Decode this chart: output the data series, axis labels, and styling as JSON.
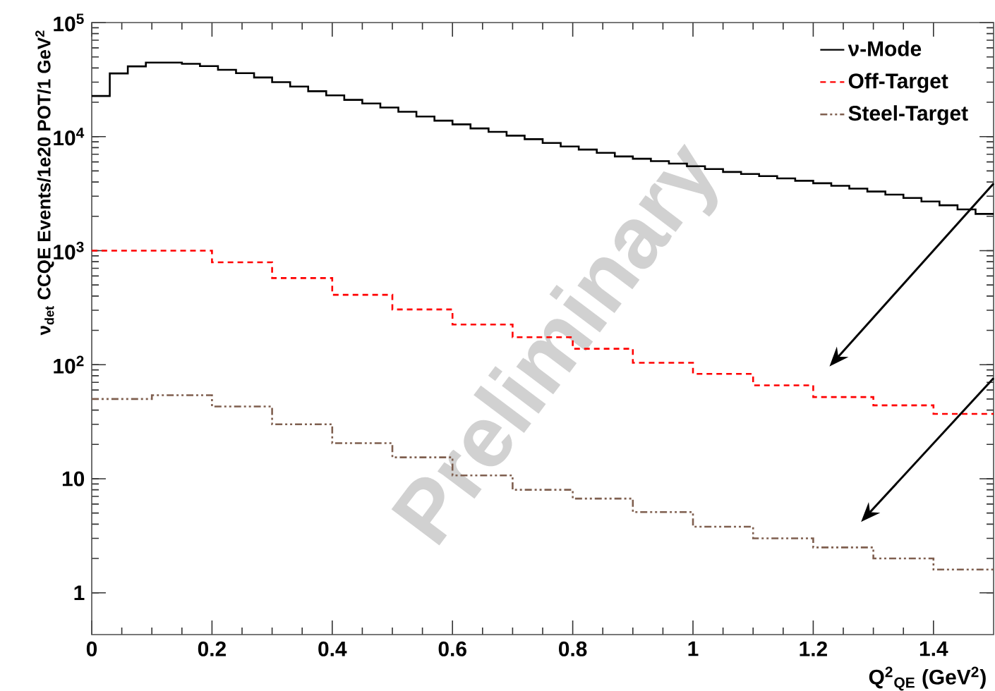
{
  "chart_data": {
    "type": "step",
    "xlabel": "Q$^{2}$$_{QE}$ (GeV$^{2}$)",
    "ylabel": "ν$_{det}$ CCQE Events/1e20 POT/1 GeV$^{2}$",
    "log": "y",
    "xlim": [
      0,
      1.5
    ],
    "ylim": [
      0.43,
      100000
    ],
    "xticks": [
      0,
      0.2,
      0.4,
      0.6,
      0.8,
      1,
      1.2,
      1.4
    ],
    "yticks": [
      1,
      10,
      {
        "value": 100,
        "label": "10$^{2}$"
      },
      {
        "value": 1000,
        "label": "10$^{3}$"
      },
      {
        "value": 10000,
        "label": "10$^{4}$"
      },
      {
        "value": 100000,
        "label": "10$^{5}$"
      }
    ],
    "legend": "top right",
    "grid": false,
    "annotations": [
      "Preliminary"
    ],
    "series": [
      {
        "name": "ν-Mode",
        "color": "#000000",
        "line_style": "solid",
        "x": [
          0,
          0.03,
          0.06,
          0.09,
          0.12,
          0.15,
          0.18,
          0.21,
          0.24,
          0.27,
          0.3,
          0.33,
          0.36,
          0.39,
          0.42,
          0.45,
          0.48,
          0.51,
          0.54,
          0.57,
          0.6,
          0.63,
          0.66,
          0.69,
          0.72,
          0.75,
          0.78,
          0.81,
          0.84,
          0.87,
          0.9,
          0.93,
          0.96,
          0.99,
          1.02,
          1.05,
          1.08,
          1.11,
          1.14,
          1.17,
          1.2,
          1.23,
          1.26,
          1.29,
          1.32,
          1.35,
          1.38,
          1.41,
          1.44,
          1.47,
          1.5
        ],
        "values": [
          22700,
          35800,
          41300,
          44600,
          44600,
          43500,
          41500,
          38500,
          36000,
          33000,
          30000,
          27500,
          25000,
          23000,
          21000,
          19500,
          18000,
          16500,
          15000,
          13800,
          12800,
          11800,
          11000,
          10200,
          9500,
          8800,
          8200,
          7700,
          7200,
          6700,
          6400,
          6100,
          5800,
          5500,
          5200,
          4900,
          4700,
          4500,
          4300,
          4100,
          3900,
          3700,
          3500,
          3300,
          3100,
          2900,
          2700,
          2500,
          2300,
          2100,
          2100
        ]
      },
      {
        "name": "Off-Target",
        "color": "#ff0000",
        "line_style": "dashed",
        "x": [
          0,
          0.1,
          0.2,
          0.3,
          0.4,
          0.5,
          0.6,
          0.7,
          0.8,
          0.9,
          1,
          1.1,
          1.2,
          1.3,
          1.4,
          1.5
        ],
        "values": [
          1000,
          1000,
          790,
          575,
          410,
          305,
          225,
          174,
          138,
          104,
          83,
          66,
          52,
          44,
          37,
          37
        ]
      },
      {
        "name": "Steel-Target",
        "color": "#7f5f4f",
        "line_style": "dashdotdotted",
        "x": [
          0,
          0.1,
          0.2,
          0.3,
          0.4,
          0.5,
          0.6,
          0.7,
          0.8,
          0.9,
          1,
          1.1,
          1.2,
          1.3,
          1.4,
          1.5
        ],
        "values": [
          50,
          54,
          43,
          30,
          20.5,
          15.4,
          10.7,
          8.0,
          6.7,
          5.1,
          3.8,
          3.0,
          2.5,
          2.0,
          1.6,
          1.6
        ]
      }
    ]
  }
}
